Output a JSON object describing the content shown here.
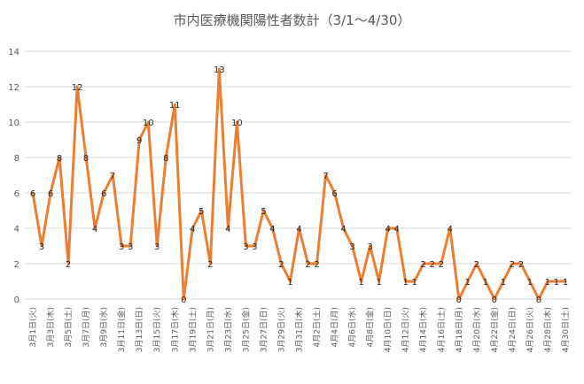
{
  "chart_data": {
    "type": "line",
    "title": "市内医療機関陽性者数計（3/1～4/30）",
    "xlabel": "",
    "ylabel": "",
    "ylim": [
      0,
      14
    ],
    "yticks": [
      0,
      2,
      4,
      6,
      8,
      10,
      12,
      14
    ],
    "grid": true,
    "legend": "none",
    "line_color": "#ED7D31",
    "x": [
      "3月1日(火)",
      "3月2日(水)",
      "3月3日(木)",
      "3月4日(金)",
      "3月5日(土)",
      "3月6日(日)",
      "3月7日(月)",
      "3月8日(火)",
      "3月9日(水)",
      "3月10日(木)",
      "3月11日(金)",
      "3月12日(土)",
      "3月13日(日)",
      "3月14日(月)",
      "3月15日(火)",
      "3月16日(水)",
      "3月17日(木)",
      "3月18日(金)",
      "3月19日(土)",
      "3月20日(日)",
      "3月21日(月)",
      "3月22日(火)",
      "3月23日(水)",
      "3月24日(木)",
      "3月25日(金)",
      "3月26日(土)",
      "3月27日(日)",
      "3月28日(月)",
      "3月29日(火)",
      "3月30日(水)",
      "3月31日(木)",
      "4月1日(金)",
      "4月2日(土)",
      "4月3日(日)",
      "4月4日(月)",
      "4月5日(火)",
      "4月6日(水)",
      "4月7日(木)",
      "4月8日(金)",
      "4月9日(土)",
      "4月10日(日)",
      "4月11日(月)",
      "4月12日(火)",
      "4月13日(水)",
      "4月14日(木)",
      "4月15日(金)",
      "4月16日(土)",
      "4月17日(日)",
      "4月18日(月)",
      "4月19日(火)",
      "4月20日(水)",
      "4月21日(木)",
      "4月22日(金)",
      "4月23日(土)",
      "4月24日(日)",
      "4月25日(月)",
      "4月26日(火)",
      "4月27日(水)",
      "4月28日(木)",
      "4月29日(金)",
      "4月30日(土)"
    ],
    "x_tick_labels": [
      "3月1日(火)",
      "3月3日(木)",
      "3月5日(土)",
      "3月7日(月)",
      "3月9日(水)",
      "3月11日(金)",
      "3月13日(日)",
      "3月15日(火)",
      "3月17日(木)",
      "3月19日(土)",
      "3月21日(月)",
      "3月23日(水)",
      "3月25日(金)",
      "3月27日(日)",
      "3月29日(火)",
      "3月31日(木)",
      "4月2日(土)",
      "4月4日(月)",
      "4月6日(水)",
      "4月8日(金)",
      "4月10日(日)",
      "4月12日(火)",
      "4月14日(木)",
      "4月16日(土)",
      "4月18日(月)",
      "4月20日(水)",
      "4月22日(金)",
      "4月24日(日)",
      "4月26日(火)",
      "4月28日(木)",
      "4月30日(土)"
    ],
    "series": [
      {
        "name": "",
        "values": [
          6,
          3,
          6,
          8,
          2,
          12,
          8,
          4,
          6,
          7,
          3,
          3,
          9,
          10,
          3,
          8,
          11,
          0,
          4,
          5,
          2,
          13,
          4,
          10,
          3,
          3,
          5,
          4,
          2,
          1,
          4,
          2,
          2,
          7,
          6,
          4,
          3,
          1,
          3,
          1,
          4,
          4,
          1,
          1,
          2,
          2,
          2,
          4,
          0,
          1,
          2,
          1,
          0,
          1,
          2,
          2,
          1,
          0,
          1,
          1,
          1
        ]
      }
    ]
  }
}
